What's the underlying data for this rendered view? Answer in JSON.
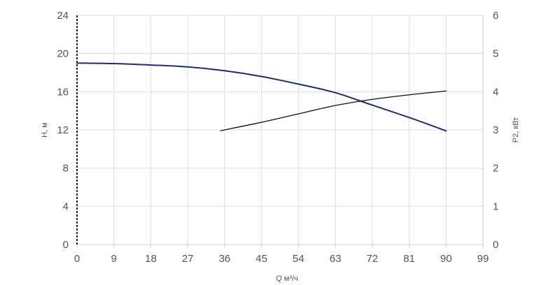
{
  "chart_data": {
    "type": "line",
    "xlabel": "Q м³/ч",
    "ylabel_left": "H, м",
    "ylabel_right": "P2, кВт",
    "x_ticks": [
      0,
      9,
      18,
      27,
      36,
      45,
      54,
      63,
      72,
      81,
      90,
      99
    ],
    "y_left_ticks": [
      0,
      4,
      8,
      12,
      16,
      20,
      24
    ],
    "y_right_ticks": [
      0,
      1,
      2,
      3,
      4,
      5,
      6
    ],
    "xlim": [
      0,
      99
    ],
    "ylim_left": [
      0,
      24
    ],
    "ylim_right": [
      0,
      6
    ],
    "grid": true,
    "series": [
      {
        "axis": "left",
        "color": "#1f2d6b",
        "x": [
          0,
          9,
          18,
          27,
          36,
          45,
          54,
          63,
          72,
          81,
          90
        ],
        "y": [
          19.0,
          18.95,
          18.8,
          18.6,
          18.2,
          17.6,
          16.8,
          15.9,
          14.6,
          13.3,
          11.9
        ]
      },
      {
        "axis": "right",
        "color": "#111111",
        "x": [
          35,
          45,
          54,
          63,
          72,
          81,
          90
        ],
        "y": [
          2.98,
          3.2,
          3.42,
          3.64,
          3.8,
          3.92,
          4.02
        ]
      }
    ]
  }
}
